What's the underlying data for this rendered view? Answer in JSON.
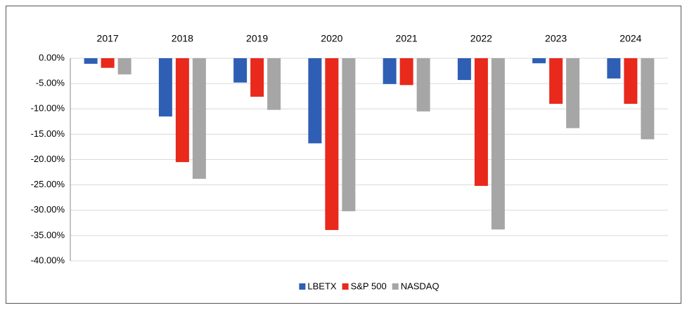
{
  "chart_data": {
    "type": "bar",
    "categories": [
      "2017",
      "2018",
      "2019",
      "2020",
      "2021",
      "2022",
      "2023",
      "2024"
    ],
    "series": [
      {
        "name": "LBETX",
        "color": "#2e5fb5",
        "values": [
          -1.1,
          -11.5,
          -4.8,
          -16.8,
          -5.1,
          -4.3,
          -1.0,
          -4.0
        ]
      },
      {
        "name": "S&P 500",
        "color": "#e8291c",
        "values": [
          -1.9,
          -20.5,
          -7.6,
          -33.9,
          -5.3,
          -25.2,
          -9.0,
          -9.0
        ]
      },
      {
        "name": "NASDAQ",
        "color": "#a6a6a6",
        "values": [
          -3.2,
          -23.8,
          -10.2,
          -30.2,
          -10.5,
          -33.8,
          -13.8,
          -16.0
        ]
      }
    ],
    "ylim": [
      -40,
      0
    ],
    "yticks": [
      {
        "value": 0,
        "label": "0.00%"
      },
      {
        "value": -5,
        "label": "-5.00%"
      },
      {
        "value": -10,
        "label": "-10.00%"
      },
      {
        "value": -15,
        "label": "-15.00%"
      },
      {
        "value": -20,
        "label": "-20.00%"
      },
      {
        "value": -25,
        "label": "-25.00%"
      },
      {
        "value": -30,
        "label": "-30.00%"
      },
      {
        "value": -35,
        "label": "-35.00%"
      },
      {
        "value": -40,
        "label": "-40.00%"
      }
    ],
    "grid": true,
    "legend": "bottom"
  }
}
